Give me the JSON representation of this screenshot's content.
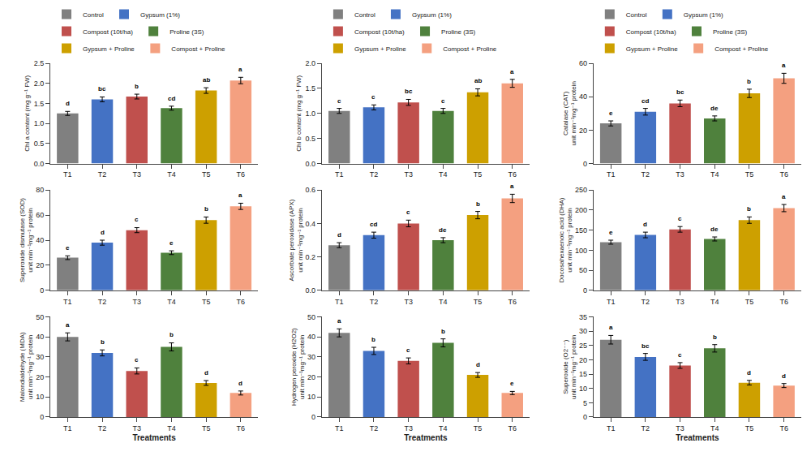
{
  "chart_data": [
    {
      "type": "bar",
      "categories": [
        "T1",
        "T2",
        "T3",
        "T4",
        "T5",
        "T6"
      ],
      "values": [
        1.25,
        1.6,
        1.67,
        1.38,
        1.82,
        2.07
      ],
      "errors": [
        0.05,
        0.06,
        0.06,
        0.05,
        0.07,
        0.08
      ],
      "annotations": [
        "d",
        "bc",
        "b",
        "cd",
        "ab",
        "a"
      ],
      "colors": [
        "#808080",
        "#4472C4",
        "#C0504D",
        "#4F813D",
        "#CDA000",
        "#F4A080"
      ],
      "ylabel": "Chl a content (mg g⁻¹ FW)",
      "ylim": [
        0,
        2.5
      ],
      "yticks": [
        {
          "value": 0,
          "label": "0.0"
        },
        0.5,
        {
          "value": 1,
          "label": "1.0"
        },
        1.5,
        {
          "value": 2,
          "label": "2.0"
        },
        2.5
      ],
      "grid": false,
      "legend": "top",
      "legend_labels": [
        "Control",
        "Gypsum (1%)",
        "Compost (10t/ha)",
        "Proline (3S)",
        "Gypsum + Proline",
        "Compost + Proline"
      ]
    },
    {
      "type": "bar",
      "categories": [
        "T1",
        "T2",
        "T3",
        "T4",
        "T5",
        "T6"
      ],
      "values": [
        1.05,
        1.12,
        1.22,
        1.05,
        1.42,
        1.6
      ],
      "errors": [
        0.05,
        0.05,
        0.06,
        0.05,
        0.07,
        0.08
      ],
      "annotations": [
        "c",
        "c",
        "bc",
        "c",
        "ab",
        "a"
      ],
      "colors": [
        "#808080",
        "#4472C4",
        "#C0504D",
        "#4F813D",
        "#CDA000",
        "#F4A080"
      ],
      "ylabel": "Chl b content (mg g⁻¹ FW)",
      "ylim": [
        0,
        2.0
      ],
      "yticks": [
        {
          "value": 0,
          "label": "0.0"
        },
        0.5,
        {
          "value": 1,
          "label": "1.0"
        },
        1.5,
        {
          "value": 2,
          "label": "2.0"
        }
      ],
      "grid": false,
      "legend": "top",
      "legend_labels": [
        "Control",
        "Gypsum (1%)",
        "Compost (10t/ha)",
        "Proline (3S)",
        "Gypsum + Proline",
        "Compost + Proline"
      ]
    },
    {
      "type": "bar",
      "categories": [
        "T1",
        "T2",
        "T3",
        "T4",
        "T5",
        "T6"
      ],
      "values": [
        24,
        31,
        36,
        27,
        42,
        51
      ],
      "errors": [
        1.5,
        2.0,
        2.0,
        1.5,
        2.5,
        3.0
      ],
      "annotations": [
        "e",
        "cd",
        "bc",
        "de",
        "b",
        "a"
      ],
      "colors": [
        "#808080",
        "#4472C4",
        "#C0504D",
        "#4F813D",
        "#CDA000",
        "#F4A080"
      ],
      "ylabel": "Catalase (CAT)\nunit min⁻¹mg⁻¹ protein",
      "ylim": [
        0,
        60
      ],
      "yticks": [
        0,
        20,
        40,
        60
      ],
      "grid": false,
      "legend": "top",
      "legend_labels": [
        "Control",
        "Gypsum (1%)",
        "Compost (10t/ha)",
        "Proline (3S)",
        "Gypsum + Proline",
        "Compost + Proline"
      ]
    },
    {
      "type": "bar",
      "categories": [
        "T1",
        "T2",
        "T3",
        "T4",
        "T5",
        "T6"
      ],
      "values": [
        26,
        38,
        48,
        30,
        56,
        67
      ],
      "errors": [
        1.5,
        2.0,
        2.0,
        1.5,
        2.5,
        2.5
      ],
      "annotations": [
        "e",
        "d",
        "c",
        "e",
        "b",
        "a"
      ],
      "colors": [
        "#808080",
        "#4472C4",
        "#C0504D",
        "#4F813D",
        "#CDA000",
        "#F4A080"
      ],
      "ylabel": "Superoxide dismutase (SOD)\nunit min⁻¹mg⁻¹ protein",
      "ylim": [
        0,
        80
      ],
      "yticks": [
        0,
        20,
        40,
        60,
        80
      ],
      "grid": false
    },
    {
      "type": "bar",
      "categories": [
        "T1",
        "T2",
        "T3",
        "T4",
        "T5",
        "T6"
      ],
      "values": [
        0.27,
        0.33,
        0.4,
        0.3,
        0.45,
        0.55
      ],
      "errors": [
        0.015,
        0.018,
        0.02,
        0.015,
        0.022,
        0.025
      ],
      "annotations": [
        "d",
        "cd",
        "c",
        "de",
        "b",
        "a"
      ],
      "colors": [
        "#808080",
        "#4472C4",
        "#C0504D",
        "#4F813D",
        "#CDA000",
        "#F4A080"
      ],
      "ylabel": "Ascorbate peroxidase (APX)\nunit min⁻¹mg⁻¹ protein",
      "ylim": [
        0,
        0.6
      ],
      "yticks": [
        {
          "value": 0,
          "label": "0.0"
        },
        0.2,
        0.4,
        0.6
      ],
      "grid": false
    },
    {
      "type": "bar",
      "categories": [
        "T1",
        "T2",
        "T3",
        "T4",
        "T5",
        "T6"
      ],
      "values": [
        120,
        138,
        152,
        128,
        175,
        205
      ],
      "errors": [
        5,
        7,
        7,
        5,
        8,
        9
      ],
      "annotations": [
        "e",
        "d",
        "c",
        "de",
        "b",
        "a"
      ],
      "colors": [
        "#808080",
        "#4472C4",
        "#C0504D",
        "#4F813D",
        "#CDA000",
        "#F4A080"
      ],
      "ylabel": "Docosahexaenoic acid (DHA)\nunit min⁻¹mg⁻¹ protein",
      "ylim": [
        0,
        250
      ],
      "yticks": [
        0,
        50,
        100,
        150,
        200,
        250
      ],
      "grid": false
    },
    {
      "type": "bar",
      "categories": [
        "T1",
        "T2",
        "T3",
        "T4",
        "T5",
        "T6"
      ],
      "values": [
        40,
        32,
        23,
        35,
        17,
        12
      ],
      "errors": [
        2.0,
        1.5,
        1.5,
        2.0,
        1.2,
        1.0
      ],
      "annotations": [
        "a",
        "b",
        "c",
        "b",
        "d",
        "d"
      ],
      "colors": [
        "#808080",
        "#4472C4",
        "#C0504D",
        "#4F813D",
        "#CDA000",
        "#F4A080"
      ],
      "xlabel": "Treatments",
      "ylabel": "Malondialdehyde (MDA)\nunit min⁻¹mg⁻¹ protein",
      "ylim": [
        0,
        50
      ],
      "yticks": [
        0,
        10,
        20,
        30,
        40,
        50
      ],
      "grid": false
    },
    {
      "type": "bar",
      "categories": [
        "T1",
        "T2",
        "T3",
        "T4",
        "T5",
        "T6"
      ],
      "values": [
        42,
        33,
        28,
        37,
        21,
        12
      ],
      "errors": [
        2.0,
        1.8,
        1.5,
        2.0,
        1.2,
        0.8
      ],
      "annotations": [
        "a",
        "b",
        "c",
        "b",
        "d",
        "e"
      ],
      "colors": [
        "#808080",
        "#4472C4",
        "#C0504D",
        "#4F813D",
        "#CDA000",
        "#F4A080"
      ],
      "xlabel": "Treatments",
      "ylabel": "Hydrogen peroxide (H2O2)\nunit min⁻¹mg⁻¹ protein",
      "ylim": [
        0,
        50
      ],
      "yticks": [
        0,
        10,
        20,
        30,
        40,
        50
      ],
      "grid": false
    },
    {
      "type": "bar",
      "categories": [
        "T1",
        "T2",
        "T3",
        "T4",
        "T5",
        "T6"
      ],
      "values": [
        27,
        21,
        18,
        24,
        12,
        11
      ],
      "errors": [
        1.5,
        1.2,
        1.0,
        1.3,
        0.8,
        0.7
      ],
      "annotations": [
        "a",
        "bc",
        "c",
        "b",
        "d",
        "d"
      ],
      "colors": [
        "#808080",
        "#4472C4",
        "#C0504D",
        "#4F813D",
        "#CDA000",
        "#F4A080"
      ],
      "xlabel": "Treatments",
      "ylabel": "Superoxide (O2⁻⁻)\nunit min⁻¹mg⁻¹ protein",
      "ylim": [
        0,
        35
      ],
      "yticks": [
        0,
        5,
        10,
        15,
        20,
        25,
        30,
        35
      ],
      "grid": false
    }
  ]
}
